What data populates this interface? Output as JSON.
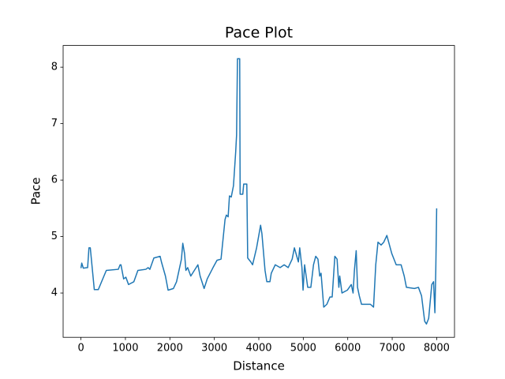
{
  "chart_data": {
    "type": "line",
    "title": "Pace Plot",
    "x_label": "Distance",
    "y_label": "Pace",
    "xlim": [
      -401,
      8401
    ],
    "ylim": [
      3.215,
      8.385
    ],
    "xticks": [
      0,
      1000,
      2000,
      3000,
      4000,
      5000,
      6000,
      7000,
      8000
    ],
    "yticks": [
      4,
      5,
      6,
      7,
      8
    ],
    "grid": false,
    "series": [
      {
        "name": "Pace",
        "color": "#1f77b4",
        "x": [
          0,
          18,
          53,
          150,
          180,
          210,
          300,
          390,
          570,
          840,
          880,
          900,
          960,
          1010,
          1070,
          1190,
          1280,
          1460,
          1510,
          1550,
          1640,
          1780,
          1810,
          1900,
          1960,
          2080,
          2150,
          2260,
          2290,
          2330,
          2360,
          2400,
          2470,
          2630,
          2680,
          2770,
          2840,
          2970,
          3060,
          3150,
          3240,
          3270,
          3310,
          3340,
          3380,
          3430,
          3480,
          3500,
          3520,
          3570,
          3580,
          3640,
          3660,
          3730,
          3750,
          3820,
          3860,
          3950,
          4040,
          4070,
          4140,
          4180,
          4250,
          4280,
          4370,
          4480,
          4570,
          4660,
          4750,
          4800,
          4890,
          4920,
          4970,
          4995,
          5030,
          5100,
          5170,
          5230,
          5280,
          5330,
          5370,
          5400,
          5460,
          5530,
          5600,
          5650,
          5710,
          5760,
          5800,
          5820,
          5870,
          5990,
          6080,
          6120,
          6150,
          6190,
          6220,
          6260,
          6310,
          6510,
          6580,
          6630,
          6680,
          6750,
          6810,
          6880,
          6990,
          7090,
          7200,
          7270,
          7320,
          7500,
          7590,
          7660,
          7730,
          7770,
          7820,
          7890,
          7930,
          7960,
          7980,
          8000
        ],
        "values": [
          4.44,
          4.53,
          4.44,
          4.45,
          4.8,
          4.8,
          4.06,
          4.06,
          4.4,
          4.42,
          4.5,
          4.5,
          4.25,
          4.28,
          4.15,
          4.2,
          4.4,
          4.42,
          4.45,
          4.42,
          4.62,
          4.65,
          4.55,
          4.3,
          4.05,
          4.08,
          4.2,
          4.6,
          4.88,
          4.7,
          4.4,
          4.45,
          4.3,
          4.5,
          4.3,
          4.08,
          4.25,
          4.45,
          4.58,
          4.6,
          5.3,
          5.38,
          5.35,
          5.72,
          5.7,
          5.9,
          6.5,
          6.8,
          8.15,
          8.15,
          5.75,
          5.75,
          5.93,
          5.93,
          4.62,
          4.55,
          4.5,
          4.8,
          5.2,
          5.05,
          4.4,
          4.2,
          4.2,
          4.35,
          4.5,
          4.45,
          4.5,
          4.45,
          4.6,
          4.8,
          4.55,
          4.8,
          4.45,
          4.05,
          4.5,
          4.1,
          4.1,
          4.5,
          4.65,
          4.6,
          4.3,
          4.35,
          3.75,
          3.8,
          3.93,
          3.93,
          4.65,
          4.6,
          4.1,
          4.3,
          4.0,
          4.05,
          4.15,
          4.0,
          4.4,
          4.75,
          4.1,
          3.95,
          3.8,
          3.8,
          3.75,
          4.5,
          4.9,
          4.85,
          4.9,
          5.02,
          4.7,
          4.5,
          4.5,
          4.3,
          4.1,
          4.08,
          4.1,
          3.95,
          3.5,
          3.45,
          3.55,
          4.15,
          4.2,
          3.65,
          4.4,
          5.5
        ]
      }
    ]
  }
}
